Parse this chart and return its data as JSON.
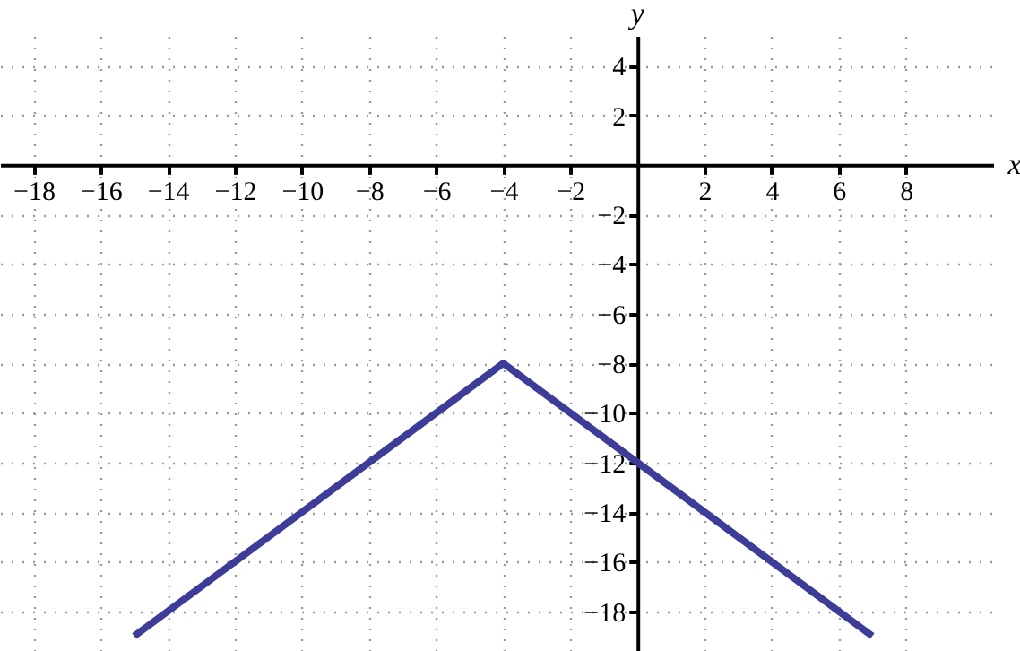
{
  "chart_data": {
    "type": "line",
    "xlabel": "x",
    "ylabel": "y",
    "x": [
      -15,
      -4,
      7
    ],
    "series": [
      {
        "color": "#3d3d99",
        "values": [
          -19,
          -8,
          -19
        ]
      }
    ],
    "xlim": [
      -19,
      10.6
    ],
    "ylim": [
      -19.6,
      5.2
    ],
    "xticks": [
      -18,
      -16,
      -14,
      -12,
      -10,
      -8,
      -6,
      -4,
      -2,
      2,
      4,
      6,
      8
    ],
    "yticks": [
      -18,
      -16,
      -14,
      -12,
      -10,
      -8,
      -6,
      -4,
      -2,
      2,
      4
    ],
    "grid": true,
    "line_style": "solid",
    "marker": "none"
  }
}
